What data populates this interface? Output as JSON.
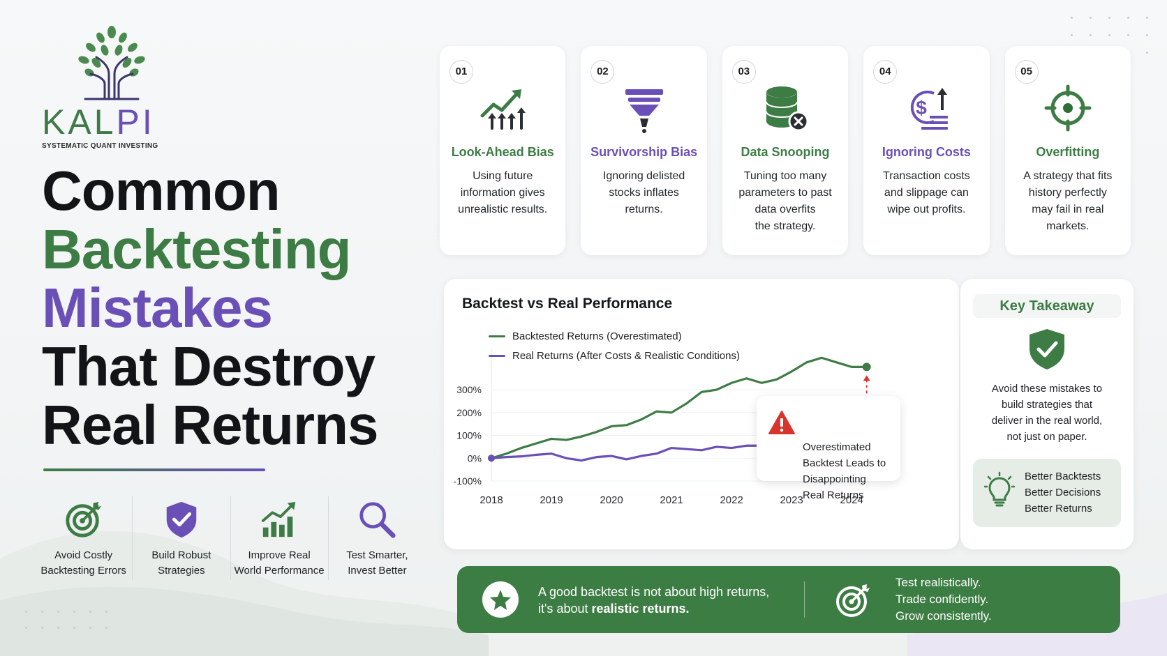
{
  "brand": {
    "name_main": "KAL",
    "name_accent": "PI",
    "tagline": "SYSTEMATIC QUANT INVESTING",
    "colors": {
      "green": "#3d7c44",
      "purple": "#6a4fb6",
      "dark": "#121417",
      "alert": "#d9342b"
    }
  },
  "headline": {
    "line1": "Common",
    "line2": "Backtesting",
    "line3": "Mistakes",
    "line4": "That Destroy",
    "line5": "Real Returns"
  },
  "benefits": [
    {
      "icon": "target-icon",
      "label": "Avoid Costly\nBacktesting Errors"
    },
    {
      "icon": "shield-check-icon",
      "label": "Build Robust\nStrategies"
    },
    {
      "icon": "growth-chart-icon",
      "label": "Improve Real\nWorld Performance"
    },
    {
      "icon": "magnifier-icon",
      "label": "Test Smarter,\nInvest Better"
    }
  ],
  "mistakes": [
    {
      "number": "01",
      "icon": "trend-up-icon",
      "title": "Look-Ahead Bias",
      "description": "Using future\ninformation gives\nunrealistic results.",
      "accent": "green"
    },
    {
      "number": "02",
      "icon": "funnel-icon",
      "title": "Survivorship Bias",
      "description": "Ignoring delisted\nstocks inflates\nreturns.",
      "accent": "purple"
    },
    {
      "number": "03",
      "icon": "database-x-icon",
      "title": "Data Snooping",
      "description": "Tuning too many\nparameters to past\ndata overfits\nthe strategy.",
      "accent": "green"
    },
    {
      "number": "04",
      "icon": "dollar-cost-icon",
      "title": "Ignoring Costs",
      "description": "Transaction costs\nand slippage can\nwipe out profits.",
      "accent": "purple"
    },
    {
      "number": "05",
      "icon": "crosshair-icon",
      "title": "Overfitting",
      "description": "A strategy that fits\nhistory perfectly\nmay fail in real\nmarkets.",
      "accent": "green"
    }
  ],
  "chart_data": {
    "type": "line",
    "title": "Backtest vs Real Performance",
    "x": [
      "2018",
      "2019",
      "2020",
      "2021",
      "2022",
      "2023",
      "2024"
    ],
    "x_values": [
      2018.0,
      2018.25,
      2018.5,
      2018.75,
      2019.0,
      2019.25,
      2019.5,
      2019.75,
      2020.0,
      2020.25,
      2020.5,
      2020.75,
      2021.0,
      2021.25,
      2021.5,
      2021.75,
      2022.0,
      2022.25,
      2022.5,
      2022.75,
      2023.0,
      2023.25,
      2023.5,
      2023.75,
      2024.0,
      2024.25
    ],
    "series": [
      {
        "name": "Backtested Returns (Overestimated)",
        "color": "#3d7c44",
        "values": [
          0,
          20,
          45,
          65,
          85,
          80,
          95,
          115,
          140,
          145,
          170,
          205,
          200,
          240,
          290,
          300,
          330,
          350,
          330,
          345,
          380,
          420,
          440,
          420,
          400,
          400
        ]
      },
      {
        "name": "Real Returns (After Costs & Realistic Conditions)",
        "color": "#6a4fb6",
        "values": [
          0,
          5,
          8,
          15,
          20,
          0,
          -10,
          5,
          10,
          -5,
          10,
          20,
          45,
          40,
          35,
          50,
          45,
          55,
          55,
          70,
          70,
          65,
          75,
          80,
          70,
          65
        ]
      }
    ],
    "y_ticks": [
      "300%",
      "200%",
      "100%",
      "0%",
      "-100%"
    ],
    "ylim": [
      -100,
      450
    ],
    "xlim": [
      2018.0,
      2024.3
    ],
    "grid": true,
    "legend_position": "top-left",
    "annotation": "Overestimated\nBacktest Leads to\nDisappointing\nReal Returns"
  },
  "takeaway": {
    "title": "Key Takeaway",
    "text": "Avoid these mistakes to\nbuild strategies that\ndeliver in the real world,\nnot just on paper.",
    "points": [
      "Better Backtests",
      "Better Decisions",
      "Better Returns"
    ]
  },
  "banner": {
    "left_normal": "A good backtest is not about high returns,",
    "left_prefix": "it's about ",
    "left_bold": "realistic returns.",
    "right_lines": [
      "Test realistically.",
      "Trade confidently.",
      "Grow consistently."
    ]
  }
}
